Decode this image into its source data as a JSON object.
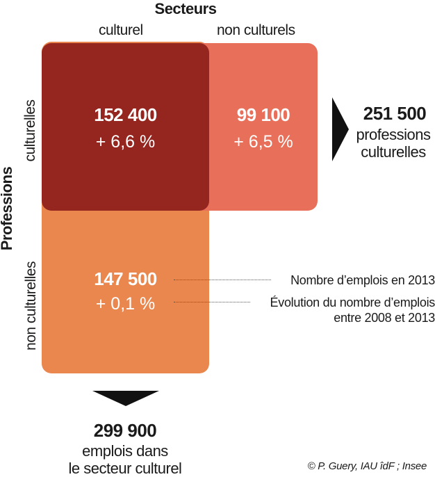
{
  "header": {
    "title": "Secteurs"
  },
  "columns": [
    {
      "label": "culturel"
    },
    {
      "label": "non culturels"
    }
  ],
  "side": {
    "title": "Professions"
  },
  "rows": [
    {
      "label": "culturelles"
    },
    {
      "label": "non culturelles"
    }
  ],
  "cells": {
    "cult_cult": {
      "value": "152 400",
      "evolution": "+ 6,6 %"
    },
    "cult_noncult": {
      "value": "99 100",
      "evolution": "+ 6,5 %"
    },
    "noncult_cult": {
      "value": "147 500",
      "evolution": "+ 0,1 %"
    }
  },
  "totals": {
    "professions": {
      "value": "251 500",
      "line1": "professions",
      "line2": "culturelles"
    },
    "secteur": {
      "value": "299 900",
      "line1": "emplois dans",
      "line2": "le secteur culturel"
    }
  },
  "legend": {
    "count": "Nombre d’emplois en 2013",
    "evolution_line1": "Évolution du nombre d’emplois",
    "evolution_line2": "entre 2008 et 2013"
  },
  "colors": {
    "dark_red": "#95261f",
    "salmon": "#e8705a",
    "orange": "#e9874f",
    "arrow": "#111111"
  },
  "credit": "© P. Guery, IAU îdF ; Insee"
}
